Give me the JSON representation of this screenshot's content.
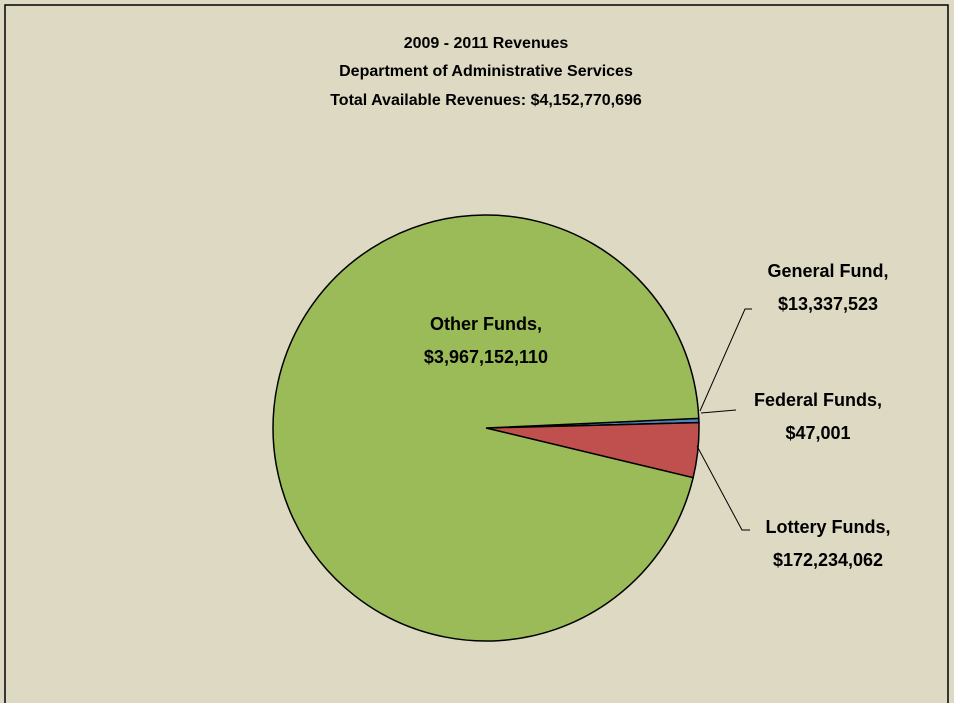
{
  "chart_data": {
    "type": "pie",
    "title": [
      "2009 - 2011 Revenues",
      "Department of Administrative Services",
      "Total Available Revenues: $4,152,770,696"
    ],
    "categories": [
      "General Fund,",
      "Federal Funds,",
      "Lottery Funds,",
      "Other Funds,"
    ],
    "values": [
      13337523,
      47001,
      172234062,
      3967152110
    ],
    "value_labels": [
      "$13,337,523",
      "$47,001",
      "$172,234,062",
      "$3,967,152,110"
    ],
    "colors": [
      "#4f81bd",
      "#8064a2",
      "#c0504d",
      "#9bbb59"
    ]
  }
}
